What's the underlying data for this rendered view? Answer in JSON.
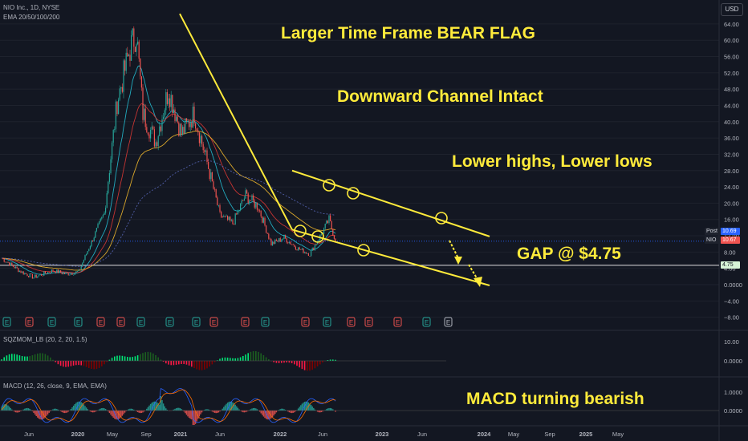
{
  "header": {
    "symbol_line": "NIO Inc., 1D, NYSE",
    "ema_line": "EMA 20/50/100/200",
    "currency": "USD",
    "sqz_label": "SQZMOM_LB (20, 2, 20, 1.5)",
    "macd_label": "MACD (12, 26, close, 9, EMA, EMA)"
  },
  "annotations": {
    "title": "Larger Time Frame BEAR FLAG",
    "channel": "Downward Channel Intact",
    "highs_lows": "Lower highs, Lower lows",
    "gap": "GAP @ $4.75",
    "macd": "MACD turning bearish"
  },
  "price_tags": {
    "post_label": "Post",
    "post_value": "10.69",
    "nio_label": "NIO",
    "nio_value": "10.67",
    "gap_value": "4.75"
  },
  "colors": {
    "background": "#131722",
    "up": "#26a69a",
    "down": "#ef5350",
    "annotation": "#ffeb3b",
    "ema20": "#26c6da",
    "ema50": "#e53935",
    "ema100": "#fbc02d",
    "ema200": "#5c6bc0",
    "macd": "#2962ff",
    "signal": "#ff6d00",
    "sqz_bright_green": "#00e676",
    "sqz_red": "#ff1744"
  },
  "chart_data": {
    "type": "line",
    "price_axis_ticks": [
      "64.00",
      "60.00",
      "56.00",
      "52.00",
      "48.00",
      "44.00",
      "40.00",
      "36.00",
      "32.00",
      "28.00",
      "24.00",
      "20.00",
      "16.00",
      "12.00",
      "8.00",
      "4.00",
      "0.0000",
      "−4.00",
      "−8.00"
    ],
    "sqz_axis_ticks": [
      "10.00",
      "0.0000"
    ],
    "macd_axis_ticks": [
      "1.0000",
      "0.0000"
    ],
    "time_axis_labels": [
      "Jun",
      "2020",
      "May",
      "Sep",
      "2021",
      "Jun",
      "2022",
      "Jun",
      "2023",
      "Jun",
      "2024",
      "May",
      "Sep",
      "2025",
      "May"
    ],
    "earnings_markers": [
      "E",
      "E",
      "E",
      "E",
      "E",
      "E",
      "E",
      "E",
      "E",
      "E",
      "E",
      "E",
      "E",
      "E",
      "E",
      "E",
      "E",
      "E",
      "E",
      "E",
      "E"
    ],
    "price_series": {
      "x": [
        "2019-05",
        "2019-08",
        "2019-10",
        "2020-01",
        "2020-03",
        "2020-05",
        "2020-07",
        "2020-09",
        "2020-11",
        "2021-01",
        "2021-02",
        "2021-03",
        "2021-05",
        "2021-07",
        "2021-09",
        "2021-11",
        "2022-01",
        "2022-03",
        "2022-05",
        "2022-07",
        "2022-09",
        "2022-11",
        "2023-01",
        "2023-03",
        "2023-05",
        "2023-07",
        "2023-08",
        "2023-09"
      ],
      "y": [
        6.5,
        3.2,
        1.8,
        3.5,
        2.6,
        3.2,
        10.5,
        17.5,
        45.0,
        58.0,
        62.0,
        42.0,
        35.0,
        48.0,
        37.0,
        42.0,
        30.0,
        17.0,
        15.0,
        22.0,
        19.0,
        10.0,
        11.5,
        9.0,
        7.5,
        13.0,
        16.0,
        10.67
      ]
    },
    "channel_upper_y": {
      "x": [
        "2022-02",
        "2024-06"
      ],
      "y": [
        28.0,
        14.0
      ]
    },
    "channel_lower_y": {
      "x": [
        "2022-02",
        "2024-06"
      ],
      "y": [
        13.5,
        0.0
      ]
    },
    "flagpole_y": {
      "x": [
        "2021-01",
        "2022-02"
      ],
      "y": [
        66.5,
        13.5
      ]
    },
    "ylim": [
      -10,
      66
    ]
  }
}
